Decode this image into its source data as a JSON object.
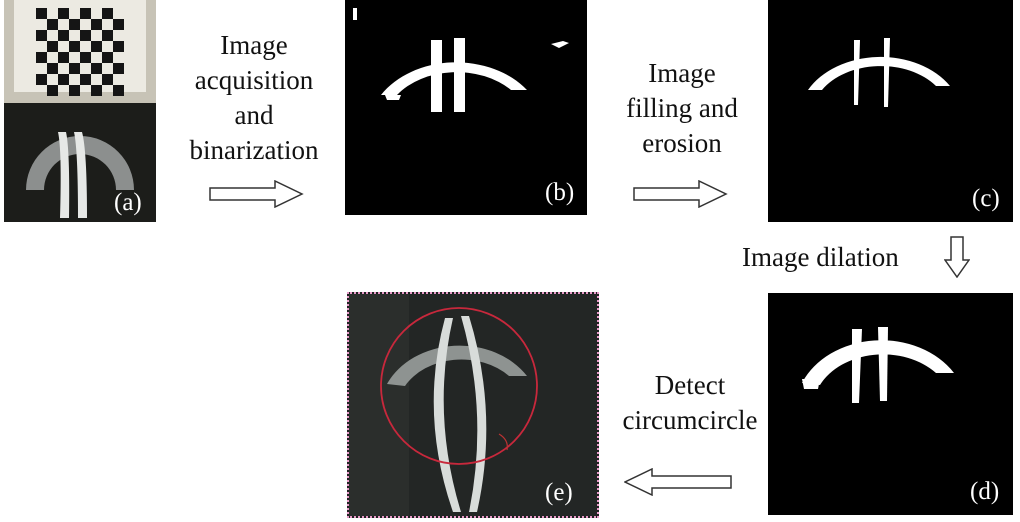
{
  "panels": {
    "a": {
      "label": "(a)"
    },
    "b": {
      "label": "(b)"
    },
    "c": {
      "label": "(c)"
    },
    "d": {
      "label": "(d)"
    },
    "e": {
      "label": "(e)"
    }
  },
  "steps": {
    "ab": [
      "Image",
      "acquisition",
      "and",
      "binarization"
    ],
    "bc": [
      "Image",
      "filling and",
      "erosion"
    ],
    "cd": "Image dilation",
    "de": [
      "Detect",
      "circumcircle"
    ]
  },
  "colors": {
    "background": "#ffffff",
    "binary_bg": "#000000",
    "binary_fg": "#ffffff",
    "circle": "#c8283c",
    "dotted_border": "#e89ac8"
  }
}
